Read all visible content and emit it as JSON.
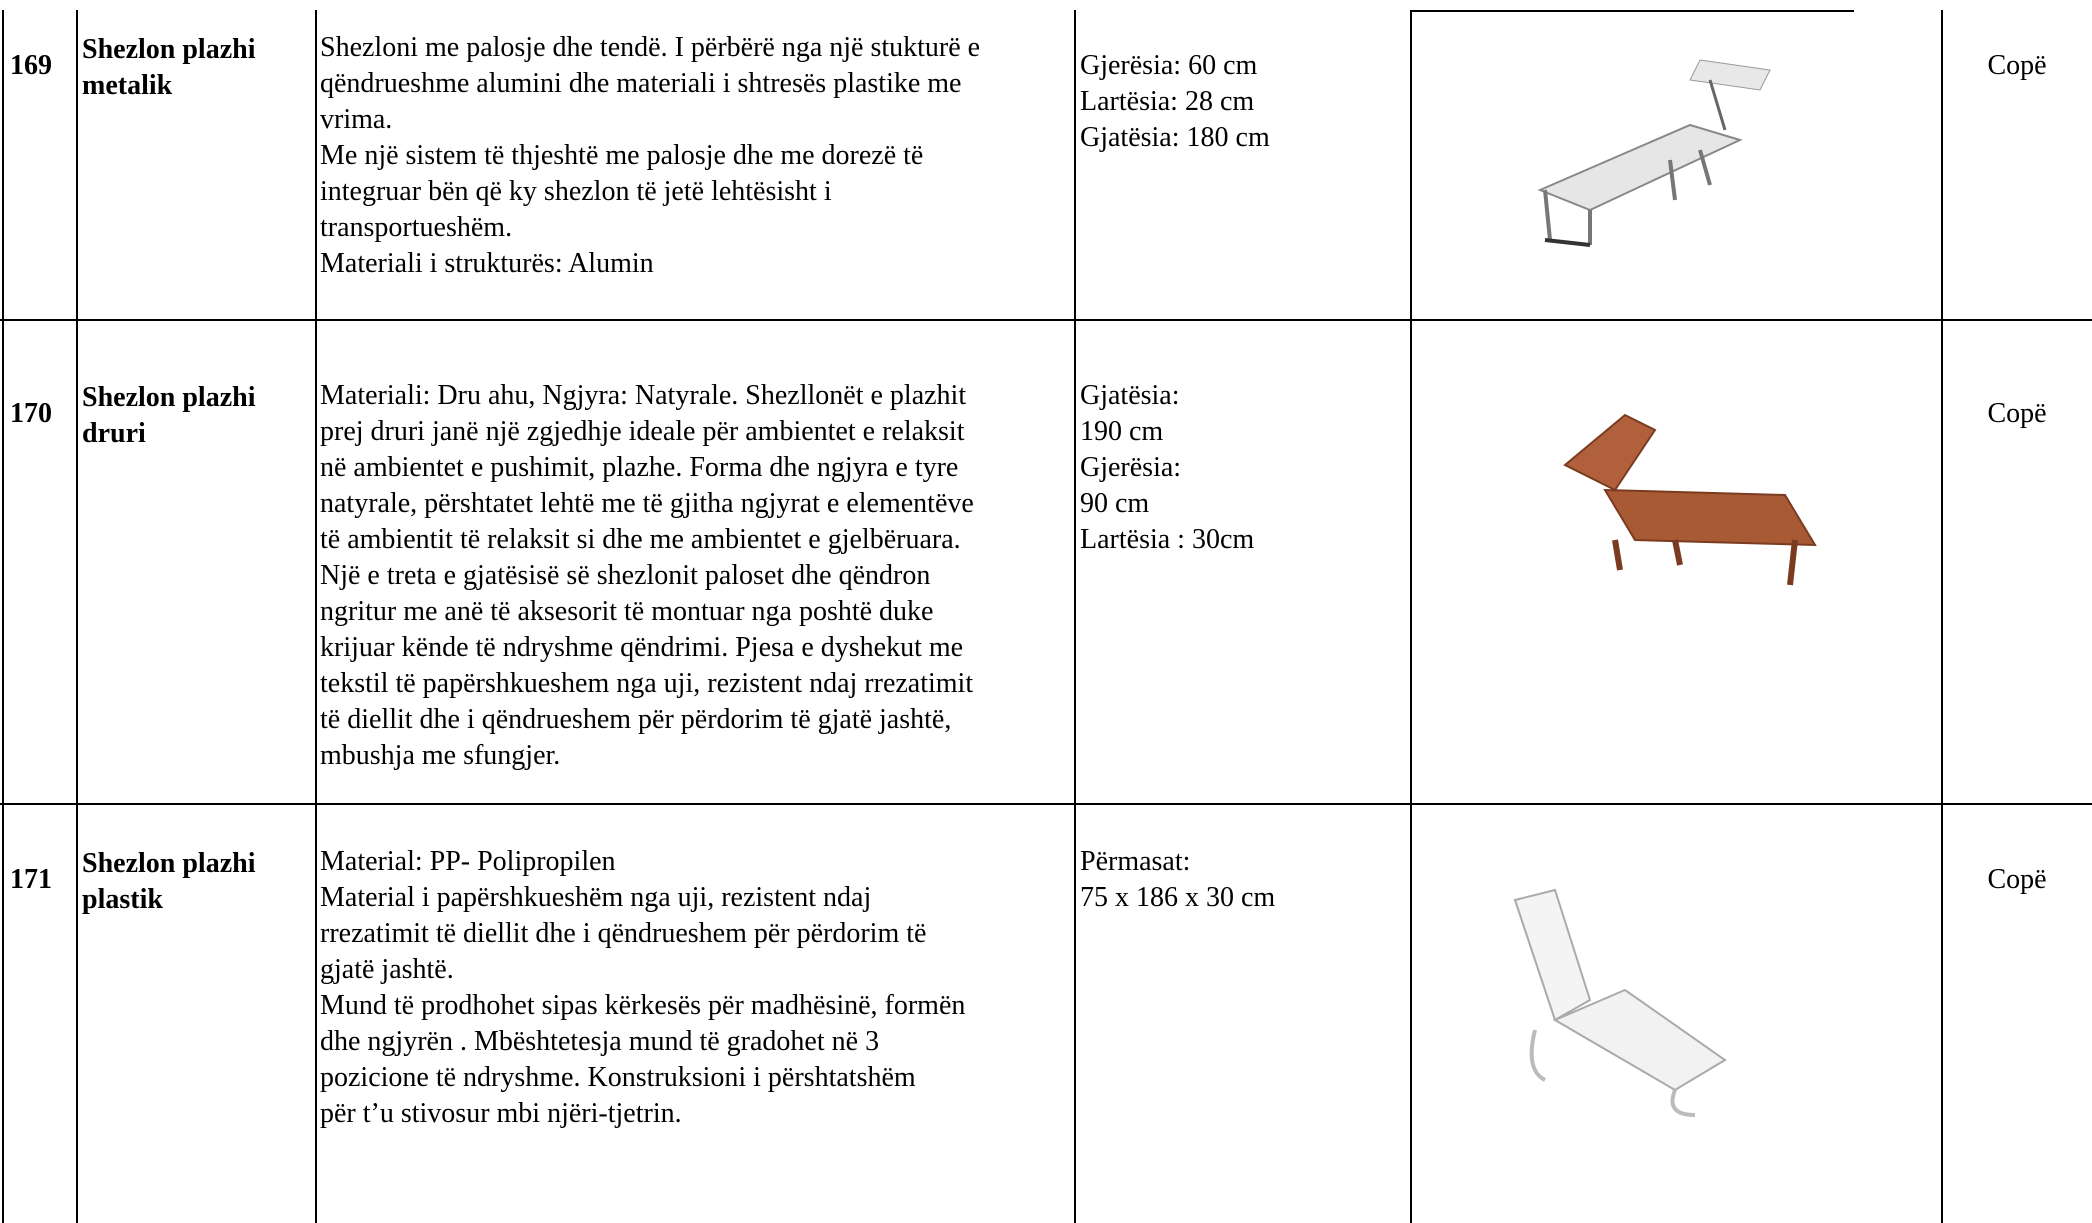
{
  "table": {
    "rows": [
      {
        "number": "169",
        "name": [
          "Shezlon plazhi",
          "metalik"
        ],
        "description": [
          "Shezloni me palosje dhe tendë. I përbërë nga një stukturë e",
          "qëndrueshme alumini dhe materiali i shtresës plastike me",
          "vrima.",
          "Me një sistem të thjeshtë me palosje dhe me dorezë të",
          "integruar bën që ky shezlon të jetë lehtësisht i",
          "transportueshëm.",
          "Materiali i strukturës: Alumin"
        ],
        "dimensions": [
          "Gjerësia: 60 cm",
          "Lartësia: 28 cm",
          "Gjatësia: 180 cm"
        ],
        "unit": "Copë"
      },
      {
        "number": "170",
        "name": [
          "Shezlon plazhi",
          "druri"
        ],
        "description": [
          "Materiali: Dru ahu, Ngjyra: Natyrale. Shezllonët e plazhit",
          "prej druri janë një zgjedhje ideale për ambientet e relaksit",
          "në ambientet e pushimit, plazhe. Forma dhe ngjyra e tyre",
          "natyrale, përshtatet lehtë me të gjitha ngjyrat e elementëve",
          "të ambientit të relaksit si dhe me ambientet e gjelbëruara.",
          "Një e treta e gjatësisë së shezlonit paloset dhe qëndron",
          "ngritur me anë të aksesorit të montuar nga poshtë duke",
          "krijuar kënde të ndryshme qëndrimi. Pjesa e dyshekut me",
          "tekstil të papërshkueshem nga uji, rezistent ndaj rrezatimit",
          "të diellit dhe i qëndrueshem për përdorim të gjatë jashtë,",
          "mbushja me sfungjer."
        ],
        "dimensions": [
          "Gjatësia:",
          "190 cm",
          "Gjerësia:",
          "90 cm",
          "Lartësia : 30cm"
        ],
        "unit": "Copë"
      },
      {
        "number": "171",
        "name": [
          "Shezlon plazhi",
          "plastik"
        ],
        "description": [
          "Material: PP- Polipropilen",
          "Material i papërshkueshëm nga uji, rezistent ndaj",
          "rrezatimit të diellit dhe i qëndrueshem për përdorim të",
          "gjatë jashtë.",
          "Mund të prodhohet sipas kërkesës për madhësinë, formën",
          "dhe ngjyrën . Mbështetesja mund të gradohet në 3",
          "pozicione të ndryshme. Konstruksioni i përshtatshëm",
          "për t’u stivosur mbi njëri-tjetrin."
        ],
        "dimensions": [
          "Përmasat:",
          "75 x 186 x 30 cm"
        ],
        "unit": "Copë"
      }
    ]
  }
}
